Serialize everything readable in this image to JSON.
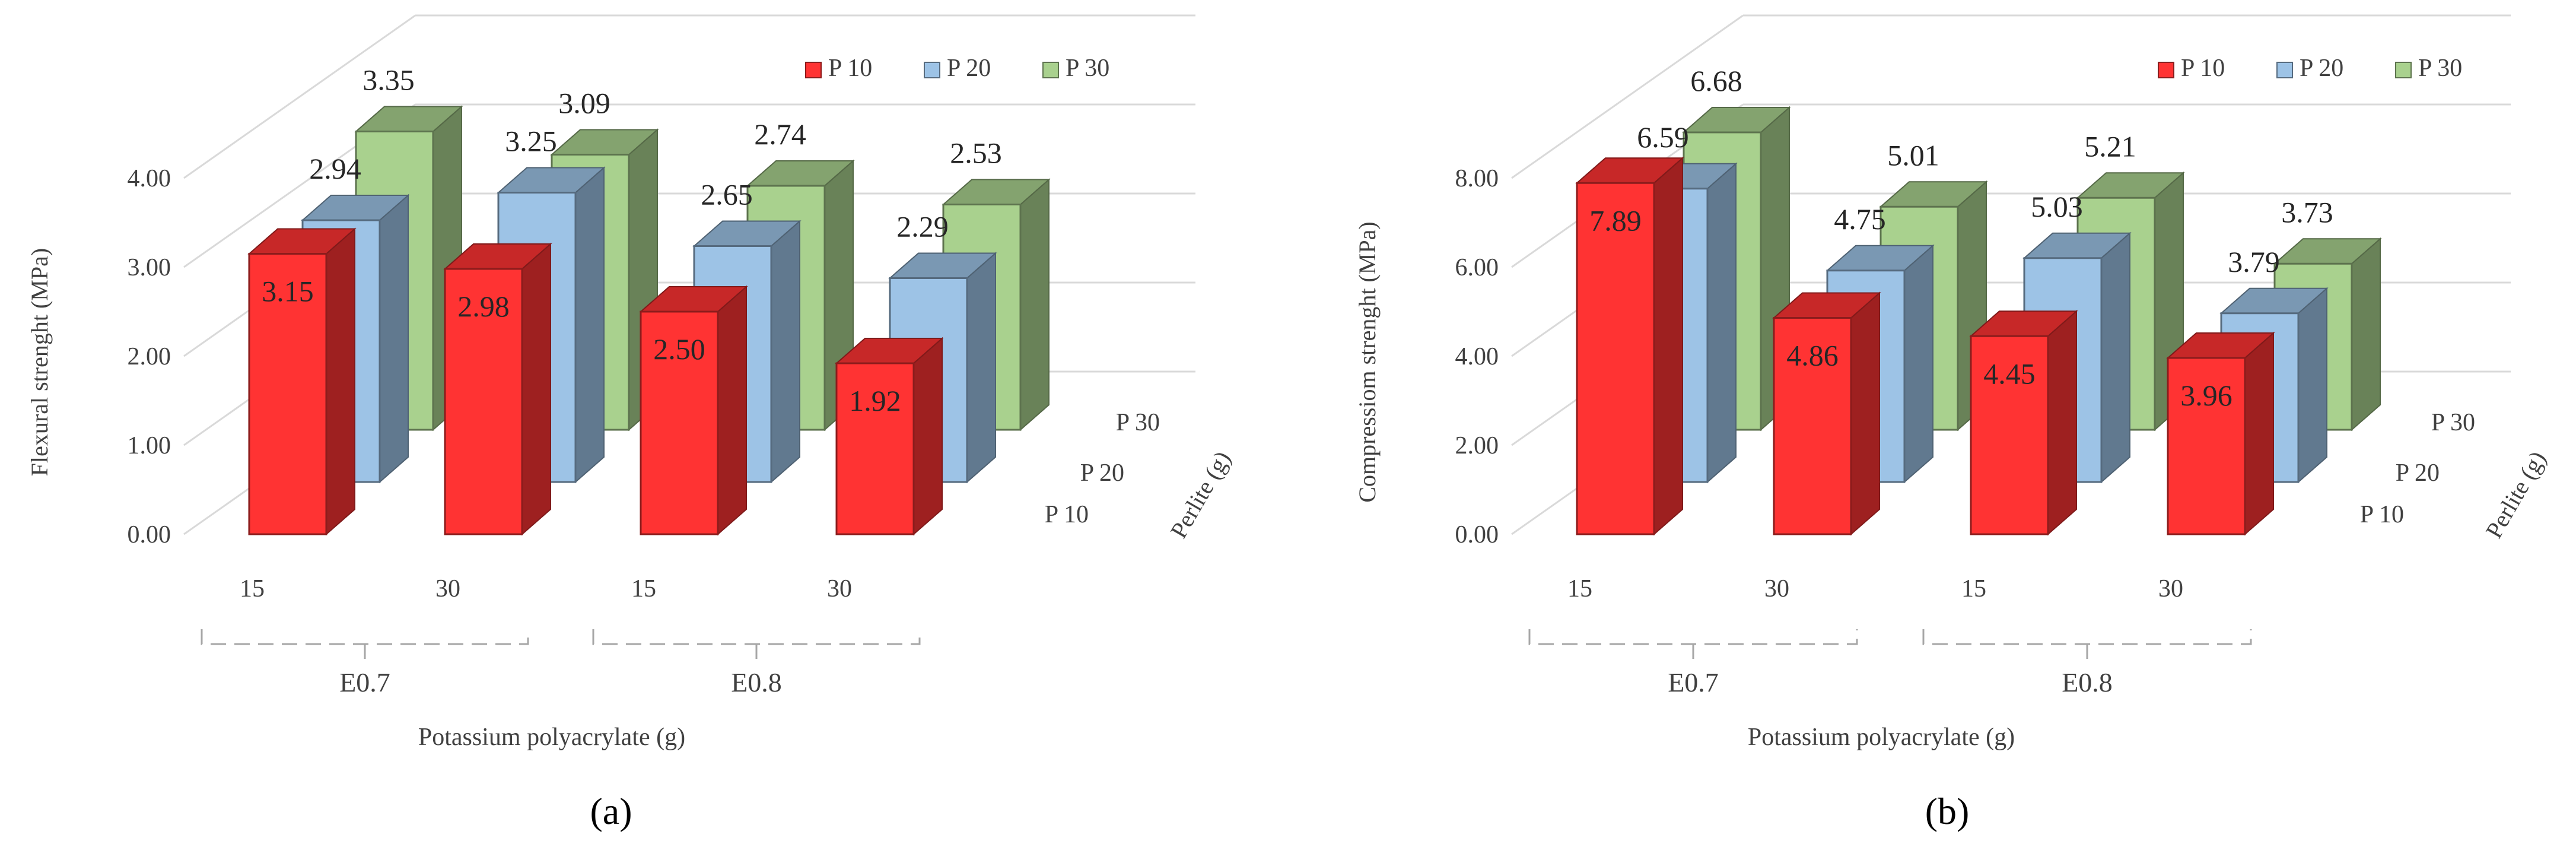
{
  "figure": {
    "panel_a_label": "(a)",
    "panel_b_label": "(b)"
  },
  "chart_data": [
    {
      "id": "a",
      "type": "bar",
      "variant": "3d-column",
      "title": "",
      "ylabel": "Flexural strenght (MPa)",
      "xlabel": "Potassium polyacrylate (g)",
      "zlabel": "Perlite (g)",
      "ylim": [
        0,
        4
      ],
      "yticks": [
        "0.00",
        "1.00",
        "2.00",
        "3.00",
        "4.00"
      ],
      "categories": [
        "15",
        "30",
        "15",
        "30"
      ],
      "groups": [
        {
          "label": "E0.7",
          "categories": [
            "15",
            "30"
          ]
        },
        {
          "label": "E0.8",
          "categories": [
            "15",
            "30"
          ]
        }
      ],
      "depth_labels": [
        "P 10",
        "P 20",
        "P 30"
      ],
      "legend": [
        "P 10",
        "P 20",
        "P 30"
      ],
      "legend_position": "top-right",
      "series": [
        {
          "name": "P 10",
          "color": "#ff3333",
          "values": [
            3.15,
            2.98,
            2.5,
            1.92
          ],
          "labels": [
            "3.15",
            "2.98",
            "2.50",
            "1.92"
          ]
        },
        {
          "name": "P 20",
          "color": "#9dc3e6",
          "values": [
            2.94,
            3.25,
            2.65,
            2.29
          ],
          "labels": [
            "2.94",
            "3.25",
            "2.65",
            "2.29"
          ]
        },
        {
          "name": "P 30",
          "color": "#a9d18e",
          "values": [
            3.35,
            3.09,
            2.74,
            2.53
          ],
          "labels": [
            "3.35",
            "3.09",
            "2.74",
            "2.53"
          ]
        }
      ]
    },
    {
      "id": "b",
      "type": "bar",
      "variant": "3d-column",
      "title": "",
      "ylabel": "Compressiom strenght (MPa)",
      "xlabel": "Potassium polyacrylate (g)",
      "zlabel": "Perlite (g)",
      "ylim": [
        0,
        8
      ],
      "yticks": [
        "0.00",
        "2.00",
        "4.00",
        "6.00",
        "8.00"
      ],
      "categories": [
        "15",
        "30",
        "15",
        "30"
      ],
      "groups": [
        {
          "label": "E0.7",
          "categories": [
            "15",
            "30"
          ]
        },
        {
          "label": "E0.8",
          "categories": [
            "15",
            "30"
          ]
        }
      ],
      "depth_labels": [
        "P 10",
        "P 20",
        "P 30"
      ],
      "legend": [
        "P 10",
        "P 20",
        "P 30"
      ],
      "legend_position": "top-right",
      "series": [
        {
          "name": "P 10",
          "color": "#ff3333",
          "values": [
            7.89,
            4.86,
            4.45,
            3.96
          ],
          "labels": [
            "7.89",
            "4.86",
            "4.45",
            "3.96"
          ]
        },
        {
          "name": "P 20",
          "color": "#9dc3e6",
          "values": [
            6.59,
            4.75,
            5.03,
            3.79
          ],
          "labels": [
            "6.59",
            "4.75",
            "5.03",
            "3.79"
          ]
        },
        {
          "name": "P 30",
          "color": "#a9d18e",
          "values": [
            6.68,
            5.01,
            5.21,
            3.73
          ],
          "labels": [
            "6.68",
            "5.01",
            "5.21",
            "3.73"
          ]
        }
      ]
    }
  ]
}
